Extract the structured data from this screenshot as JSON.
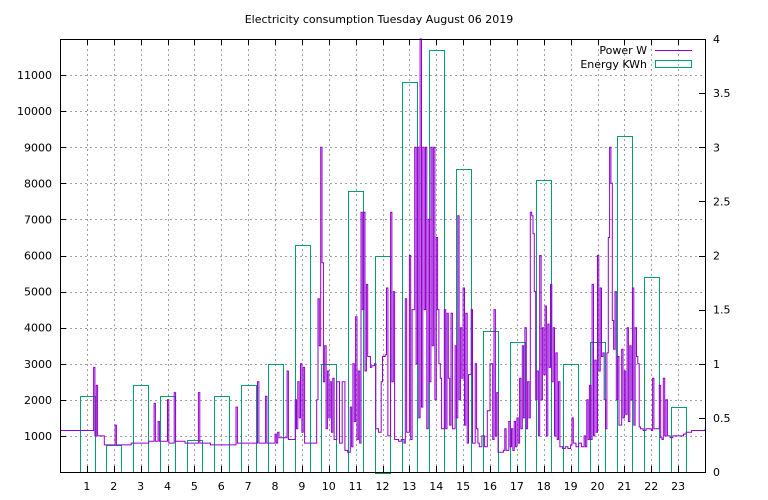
{
  "chart_data": {
    "type": "bar+line",
    "title": "Electricity consumption Tuesday August 06 2019",
    "xlim": [
      0,
      24
    ],
    "x_ticks": [
      1,
      2,
      3,
      4,
      5,
      6,
      7,
      8,
      9,
      10,
      11,
      12,
      13,
      14,
      15,
      16,
      17,
      18,
      19,
      20,
      21,
      22,
      23
    ],
    "y_left_lim": [
      0,
      12000
    ],
    "y_left_ticks": [
      1000,
      2000,
      3000,
      4000,
      5000,
      6000,
      7000,
      8000,
      9000,
      10000,
      11000
    ],
    "y_right_lim": [
      0,
      4
    ],
    "y_right_ticks": [
      "0",
      "0.5",
      "1",
      "1.5",
      "2",
      "2.5",
      "3",
      "3.5",
      "4"
    ],
    "grid": true,
    "legend_position": "top-right",
    "colors": {
      "power": "#9400d3",
      "energy": "#009e73"
    },
    "series": [
      {
        "name": "Power W",
        "axis": "left",
        "type": "line",
        "points": [
          [
            0,
            1150
          ],
          [
            1.2,
            1150
          ],
          [
            1.25,
            2900
          ],
          [
            1.3,
            1000
          ],
          [
            1.35,
            2400
          ],
          [
            1.4,
            1000
          ],
          [
            1.6,
            1000
          ],
          [
            1.65,
            750
          ],
          [
            2.0,
            750
          ],
          [
            2.05,
            1300
          ],
          [
            2.1,
            750
          ],
          [
            2.6,
            750
          ],
          [
            2.65,
            800
          ],
          [
            3.2,
            800
          ],
          [
            3.3,
            850
          ],
          [
            3.45,
            850
          ],
          [
            3.5,
            1900
          ],
          [
            3.55,
            850
          ],
          [
            3.65,
            1400
          ],
          [
            3.7,
            850
          ],
          [
            3.95,
            850
          ],
          [
            4.0,
            2000
          ],
          [
            4.05,
            800
          ],
          [
            4.2,
            800
          ],
          [
            4.25,
            2200
          ],
          [
            4.3,
            850
          ],
          [
            4.6,
            850
          ],
          [
            4.65,
            800
          ],
          [
            5.1,
            800
          ],
          [
            5.15,
            2200
          ],
          [
            5.2,
            800
          ],
          [
            5.55,
            800
          ],
          [
            5.6,
            750
          ],
          [
            6.5,
            750
          ],
          [
            6.55,
            1800
          ],
          [
            6.6,
            800
          ],
          [
            7.3,
            800
          ],
          [
            7.35,
            2500
          ],
          [
            7.4,
            800
          ],
          [
            7.6,
            800
          ],
          [
            7.65,
            2100
          ],
          [
            7.7,
            800
          ],
          [
            7.95,
            800
          ],
          [
            8.0,
            1050
          ],
          [
            8.05,
            800
          ],
          [
            8.1,
            1100
          ],
          [
            8.15,
            950
          ],
          [
            8.4,
            950
          ],
          [
            8.45,
            2800
          ],
          [
            8.5,
            900
          ],
          [
            8.7,
            900
          ],
          [
            8.75,
            2000
          ],
          [
            8.8,
            1200
          ],
          [
            8.85,
            2500
          ],
          [
            8.9,
            1500
          ],
          [
            8.95,
            3000
          ],
          [
            9.0,
            1100
          ],
          [
            9.05,
            2900
          ],
          [
            9.1,
            800
          ],
          [
            9.5,
            800
          ],
          [
            9.55,
            2000
          ],
          [
            9.6,
            4800
          ],
          [
            9.65,
            3500
          ],
          [
            9.7,
            9000
          ],
          [
            9.75,
            5800
          ],
          [
            9.8,
            2500
          ],
          [
            9.85,
            3500
          ],
          [
            9.9,
            1200
          ],
          [
            9.95,
            2800
          ],
          [
            10.0,
            1500
          ],
          [
            10.05,
            2500
          ],
          [
            10.1,
            1100
          ],
          [
            10.15,
            2600
          ],
          [
            10.2,
            900
          ],
          [
            10.3,
            2500
          ],
          [
            10.4,
            800
          ],
          [
            10.5,
            2500
          ],
          [
            10.6,
            600
          ],
          [
            10.7,
            550
          ],
          [
            10.8,
            1800
          ],
          [
            10.85,
            700
          ],
          [
            10.9,
            3000
          ],
          [
            10.95,
            1400
          ],
          [
            11.0,
            4300
          ],
          [
            11.05,
            900
          ],
          [
            11.1,
            2800
          ],
          [
            11.15,
            800
          ],
          [
            11.2,
            7200
          ],
          [
            11.25,
            4500
          ],
          [
            11.3,
            7200
          ],
          [
            11.35,
            2800
          ],
          [
            11.4,
            5200
          ],
          [
            11.45,
            3200
          ],
          [
            11.5,
            3200
          ],
          [
            11.55,
            2900
          ],
          [
            11.6,
            2950
          ],
          [
            11.7,
            3000
          ],
          [
            11.75,
            1200
          ],
          [
            11.85,
            1100
          ],
          [
            11.95,
            2500
          ],
          [
            12.0,
            3200
          ],
          [
            12.1,
            3250
          ],
          [
            12.15,
            5100
          ],
          [
            12.2,
            1000
          ],
          [
            12.3,
            7200
          ],
          [
            12.35,
            2500
          ],
          [
            12.4,
            5000
          ],
          [
            12.45,
            900
          ],
          [
            12.6,
            850
          ],
          [
            12.7,
            900
          ],
          [
            12.8,
            800
          ],
          [
            12.85,
            4800
          ],
          [
            12.9,
            1100
          ],
          [
            13.0,
            6000
          ],
          [
            13.05,
            900
          ],
          [
            13.1,
            4500
          ],
          [
            13.2,
            9000
          ],
          [
            13.25,
            3000
          ],
          [
            13.3,
            9000
          ],
          [
            13.35,
            1500
          ],
          [
            13.4,
            12000
          ],
          [
            13.45,
            1800
          ],
          [
            13.5,
            9000
          ],
          [
            13.55,
            4500
          ],
          [
            13.6,
            9000
          ],
          [
            13.65,
            1200
          ],
          [
            13.7,
            7000
          ],
          [
            13.75,
            2500
          ],
          [
            13.8,
            9000
          ],
          [
            13.85,
            3500
          ],
          [
            13.9,
            9000
          ],
          [
            13.95,
            2000
          ],
          [
            14.0,
            6500
          ],
          [
            14.05,
            4500
          ],
          [
            14.1,
            3000
          ],
          [
            14.15,
            2600
          ],
          [
            14.2,
            1200
          ],
          [
            14.3,
            4500
          ],
          [
            14.35,
            1200
          ],
          [
            14.4,
            4400
          ],
          [
            14.45,
            2600
          ],
          [
            14.5,
            1300
          ],
          [
            14.55,
            4400
          ],
          [
            14.6,
            1200
          ],
          [
            14.7,
            3500
          ],
          [
            14.75,
            1500
          ],
          [
            14.8,
            7100
          ],
          [
            14.85,
            2000
          ],
          [
            14.9,
            4000
          ],
          [
            14.95,
            2600
          ],
          [
            15.0,
            5100
          ],
          [
            15.05,
            1300
          ],
          [
            15.1,
            4400
          ],
          [
            15.15,
            800
          ],
          [
            15.2,
            2700
          ],
          [
            15.3,
            4500
          ],
          [
            15.35,
            800
          ],
          [
            15.45,
            3000
          ],
          [
            15.5,
            1200
          ],
          [
            15.55,
            800
          ],
          [
            15.6,
            700
          ],
          [
            15.7,
            1000
          ],
          [
            15.8,
            700
          ],
          [
            15.9,
            1700
          ],
          [
            16.0,
            3000
          ],
          [
            16.1,
            900
          ],
          [
            16.15,
            4500
          ],
          [
            16.2,
            1000
          ],
          [
            16.25,
            2200
          ],
          [
            16.3,
            550
          ],
          [
            16.5,
            600
          ],
          [
            16.55,
            1200
          ],
          [
            16.6,
            600
          ],
          [
            16.7,
            1400
          ],
          [
            16.75,
            700
          ],
          [
            16.8,
            1200
          ],
          [
            16.85,
            600
          ],
          [
            16.9,
            1400
          ],
          [
            16.95,
            700
          ],
          [
            17.0,
            1500
          ],
          [
            17.05,
            800
          ],
          [
            17.1,
            2600
          ],
          [
            17.15,
            1200
          ],
          [
            17.2,
            3500
          ],
          [
            17.25,
            1500
          ],
          [
            17.3,
            4000
          ],
          [
            17.35,
            1200
          ],
          [
            17.4,
            2500
          ],
          [
            17.45,
            1500
          ],
          [
            17.5,
            7200
          ],
          [
            17.55,
            7100
          ],
          [
            17.6,
            6600
          ],
          [
            17.65,
            5000
          ],
          [
            17.7,
            2000
          ],
          [
            17.75,
            2800
          ],
          [
            17.8,
            1000
          ],
          [
            17.85,
            6000
          ],
          [
            17.9,
            2000
          ],
          [
            17.95,
            4000
          ],
          [
            18.0,
            2700
          ],
          [
            18.05,
            4600
          ],
          [
            18.1,
            1000
          ],
          [
            18.15,
            4100
          ],
          [
            18.2,
            2900
          ],
          [
            18.25,
            5200
          ],
          [
            18.3,
            2500
          ],
          [
            18.35,
            4000
          ],
          [
            18.4,
            1000
          ],
          [
            18.45,
            3300
          ],
          [
            18.5,
            900
          ],
          [
            18.55,
            2500
          ],
          [
            18.6,
            700
          ],
          [
            18.7,
            650
          ],
          [
            18.8,
            700
          ],
          [
            18.9,
            650
          ],
          [
            19.0,
            750
          ],
          [
            19.05,
            1500
          ],
          [
            19.1,
            800
          ],
          [
            19.2,
            700
          ],
          [
            19.3,
            800
          ],
          [
            19.4,
            700
          ],
          [
            19.5,
            1000
          ],
          [
            19.55,
            700
          ],
          [
            19.6,
            2000
          ],
          [
            19.65,
            900
          ],
          [
            19.7,
            2400
          ],
          [
            19.75,
            900
          ],
          [
            19.8,
            5200
          ],
          [
            19.85,
            1000
          ],
          [
            19.9,
            3100
          ],
          [
            19.95,
            1100
          ],
          [
            20.0,
            6000
          ],
          [
            20.05,
            2800
          ],
          [
            20.1,
            5100
          ],
          [
            20.15,
            3200
          ],
          [
            20.2,
            3300
          ],
          [
            20.25,
            2000
          ],
          [
            20.3,
            1200
          ],
          [
            20.35,
            3300
          ],
          [
            20.4,
            6500
          ],
          [
            20.45,
            9000
          ],
          [
            20.5,
            8000
          ],
          [
            20.55,
            4200
          ],
          [
            20.6,
            3400
          ],
          [
            20.65,
            5000
          ],
          [
            20.7,
            2000
          ],
          [
            20.75,
            3200
          ],
          [
            20.8,
            1300
          ],
          [
            20.9,
            3400
          ],
          [
            20.95,
            1500
          ],
          [
            21.0,
            2800
          ],
          [
            21.05,
            1600
          ],
          [
            21.1,
            4000
          ],
          [
            21.15,
            1400
          ],
          [
            21.2,
            3500
          ],
          [
            21.25,
            2000
          ],
          [
            21.3,
            5100
          ],
          [
            21.35,
            1300
          ],
          [
            21.4,
            4000
          ],
          [
            21.45,
            3200
          ],
          [
            21.5,
            3000
          ],
          [
            21.55,
            1250
          ],
          [
            21.6,
            1200
          ],
          [
            21.7,
            1150
          ],
          [
            21.8,
            1200
          ],
          [
            22.0,
            1150
          ],
          [
            22.05,
            2600
          ],
          [
            22.1,
            1200
          ],
          [
            22.25,
            1200
          ],
          [
            22.3,
            2400
          ],
          [
            22.35,
            950
          ],
          [
            22.4,
            900
          ],
          [
            22.45,
            2600
          ],
          [
            22.5,
            1000
          ],
          [
            22.55,
            2000
          ],
          [
            22.6,
            1000
          ],
          [
            22.7,
            950
          ],
          [
            22.8,
            1000
          ],
          [
            23.2,
            1050
          ],
          [
            23.3,
            1100
          ],
          [
            23.5,
            1150
          ],
          [
            24,
            1200
          ]
        ]
      },
      {
        "name": "Energy KWh",
        "axis": "right",
        "type": "bar",
        "x": [
          1,
          2,
          3,
          4,
          5,
          6,
          7,
          8,
          9,
          10,
          11,
          12,
          13,
          14,
          15,
          16,
          17,
          18,
          19,
          20,
          21,
          22,
          23
        ],
        "values": [
          0.7,
          0.25,
          0.8,
          0.7,
          0.3,
          0.7,
          0.8,
          1.0,
          2.1,
          1.0,
          2.6,
          2.0,
          3.6,
          3.9,
          2.8,
          1.3,
          1.2,
          2.7,
          1.0,
          1.2,
          3.1,
          1.8,
          0.6
        ]
      }
    ]
  }
}
